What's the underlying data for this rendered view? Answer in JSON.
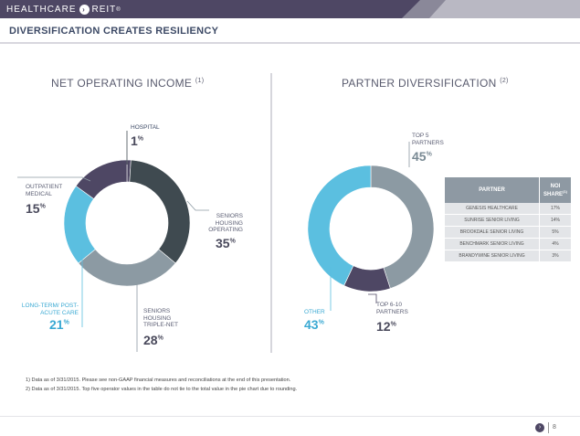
{
  "header": {
    "logo_left": "HEALTHCARE",
    "logo_right": "REIT",
    "logo_mark": "registered"
  },
  "slide_title": "DIVERSIFICATION CREATES RESILIENCY",
  "chart_data": [
    {
      "type": "pie",
      "variant": "donut",
      "title": "NET OPERATING INCOME",
      "title_note": "(1)",
      "categories": [
        "HOSPITAL",
        "SENIORS HOUSING OPERATING",
        "SENIORS HOUSING TRIPLE-NET",
        "LONG-TERM/ POST-ACUTE CARE",
        "OUTPATIENT MEDICAL"
      ],
      "values": [
        1,
        35,
        28,
        21,
        15
      ],
      "value_labels": [
        "1",
        "35",
        "28",
        "21",
        "15"
      ],
      "unit": "%",
      "colors": [
        "#4e4764",
        "#3f4a50",
        "#8c9aa3",
        "#5bbfe0",
        "#4e4764"
      ]
    },
    {
      "type": "pie",
      "variant": "donut",
      "title": "PARTNER DIVERSIFICATION",
      "title_note": "(2)",
      "categories": [
        "TOP 5 PARTNERS",
        "TOP 6-10 PARTNERS",
        "OTHER"
      ],
      "values": [
        45,
        12,
        43
      ],
      "value_labels": [
        "45",
        "12",
        "43"
      ],
      "unit": "%",
      "colors": [
        "#8c9aa3",
        "#4e4764",
        "#5bbfe0"
      ]
    }
  ],
  "partner_table": {
    "headers": [
      "PARTNER",
      "NOI SHARE",
      "(1)"
    ],
    "rows": [
      [
        "GENESIS HEALTHCARE",
        "17%"
      ],
      [
        "SUNRISE SENIOR LIVING",
        "14%"
      ],
      [
        "BROOKDALE SENIOR LIVING",
        "5%"
      ],
      [
        "BENCHMARK SENIOR LIVING",
        "4%"
      ],
      [
        "BRANDYWINE SENIOR LIVING",
        "3%"
      ]
    ]
  },
  "footnotes": [
    "1)    Data as of 3/31/2015. Please see non-GAAP financial measures and reconciliations at the end of this presentation.",
    "2)    Data as of 3/31/2015. Top five operator values in the table do not tie to the total value in the pie chart due to rounding."
  ],
  "page_number": "8",
  "colors": {
    "header_bg": "#4e4764",
    "title_text": "#3d4a66",
    "slate": "#8c9aa3",
    "dark_teal": "#3f4a50",
    "sky_blue": "#5bbfe0",
    "purple": "#4e4764"
  }
}
